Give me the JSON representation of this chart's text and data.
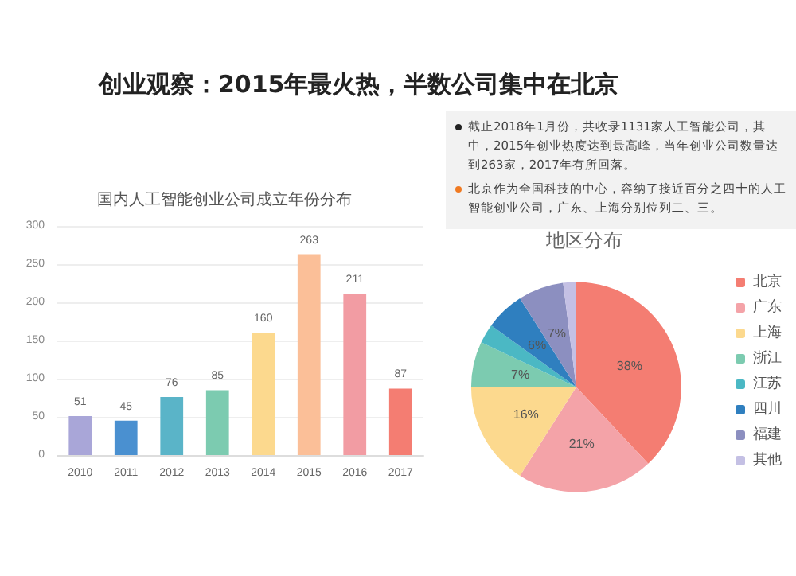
{
  "chart_data": [
    {
      "type": "other",
      "title": "创业观察：2015年最火热，半数公司集中在北京",
      "annotations": [
        "截止2018年1月份，共收录1131家人工智能公司，其中，2015年创业热度达到最高峰，当年创业公司数量达到263家，2017年有所回落。",
        "北京作为全国科技的中心，容纳了接近百分之四十的人工智能创业公司，广东、上海分别位列二、三。"
      ]
    },
    {
      "type": "bar",
      "title": "国内人工智能创业公司成立年份分布",
      "categories": [
        "2010",
        "2011",
        "2012",
        "2013",
        "2014",
        "2015",
        "2016",
        "2017"
      ],
      "values": [
        51,
        45,
        76,
        85,
        160,
        263,
        211,
        87
      ],
      "colors": [
        "#a9a6d8",
        "#4a90d0",
        "#5ab4c8",
        "#7ccbb0",
        "#fcd98e",
        "#fbbf98",
        "#f29ca3",
        "#f47d72"
      ],
      "ylim": [
        0,
        300
      ],
      "yticks": [
        0,
        50,
        100,
        150,
        200,
        250,
        300
      ],
      "grid": "y",
      "data_labels": true
    },
    {
      "type": "pie",
      "title": "地区分布",
      "categories": [
        "北京",
        "广东",
        "上海",
        "浙江",
        "江苏",
        "四川",
        "福建",
        "其他"
      ],
      "values": [
        38,
        21,
        16,
        7,
        3,
        6,
        7,
        2
      ],
      "colors": [
        "#f47d72",
        "#f4a3a8",
        "#fcd98e",
        "#7ccbb0",
        "#4bb8c4",
        "#2f7fbf",
        "#8c8fc0",
        "#c4c0e4"
      ],
      "value_labels": [
        "38%",
        "21%",
        "16%",
        "7%",
        null,
        "6%",
        "7%",
        null
      ],
      "legend": "right"
    }
  ]
}
